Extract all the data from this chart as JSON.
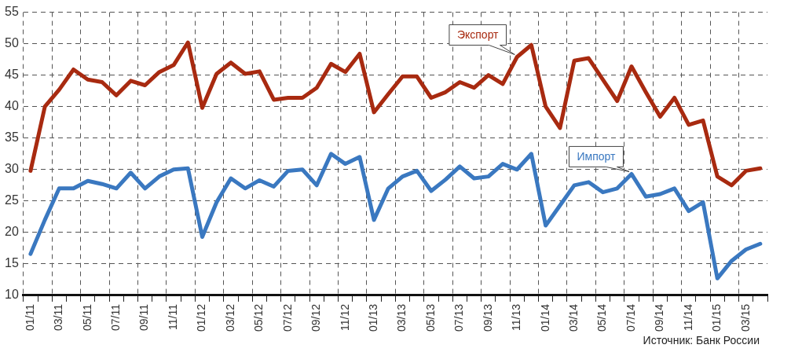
{
  "chart_data": {
    "type": "line",
    "categories": [
      "01/11",
      null,
      "03/11",
      null,
      "05/11",
      null,
      "07/11",
      null,
      "09/11",
      null,
      "11/11",
      null,
      "01/12",
      null,
      "03/12",
      null,
      "05/12",
      null,
      "07/12",
      null,
      "09/12",
      null,
      "11/12",
      null,
      "01/13",
      null,
      "03/13",
      null,
      "05/13",
      null,
      "07/13",
      null,
      "09/13",
      null,
      "11/13",
      null,
      "01/14",
      null,
      "03/14",
      null,
      "05/14",
      null,
      "07/14",
      null,
      "09/14",
      null,
      "11/14",
      null,
      "01/15",
      null,
      "03/15",
      null
    ],
    "series": [
      {
        "name": "Экспорт",
        "color": "#a82a10",
        "values": [
          29.8,
          40.0,
          42.7,
          45.9,
          44.3,
          43.9,
          41.8,
          44.1,
          43.4,
          45.5,
          46.6,
          50.2,
          39.8,
          45.2,
          47.0,
          45.2,
          45.6,
          41.1,
          41.4,
          41.4,
          43.0,
          46.8,
          45.5,
          48.4,
          39.1,
          42.0,
          44.8,
          44.8,
          41.4,
          42.3,
          43.9,
          43.0,
          45.0,
          43.6,
          47.9,
          49.8,
          40.0,
          36.6,
          47.3,
          47.7,
          44.3,
          40.9,
          46.4,
          42.3,
          38.4,
          41.4,
          37.1,
          37.8,
          28.9,
          27.5,
          29.8,
          30.2
        ]
      },
      {
        "name": "Импорт",
        "color": "#3a78c0",
        "values": [
          16.6,
          22.0,
          27.0,
          27.0,
          28.2,
          27.7,
          27.0,
          29.5,
          27.0,
          28.9,
          30.0,
          30.2,
          19.3,
          24.8,
          28.6,
          27.0,
          28.3,
          27.3,
          29.8,
          30.0,
          27.5,
          32.5,
          30.9,
          32.0,
          22.0,
          27.0,
          28.9,
          29.8,
          26.6,
          28.4,
          30.5,
          28.6,
          28.9,
          30.9,
          30.0,
          32.5,
          21.1,
          24.3,
          27.5,
          28.0,
          26.4,
          27.0,
          29.3,
          25.7,
          26.1,
          27.0,
          23.4,
          24.8,
          12.7,
          15.5,
          17.3,
          18.2
        ]
      }
    ],
    "ylim": [
      10,
      55
    ],
    "yticks": [
      10,
      15,
      20,
      25,
      30,
      35,
      40,
      45,
      50,
      55
    ],
    "grid": true,
    "legend": false,
    "marker": "none",
    "line_style": "solid",
    "annotations": [
      "Источник: Банк России"
    ]
  }
}
